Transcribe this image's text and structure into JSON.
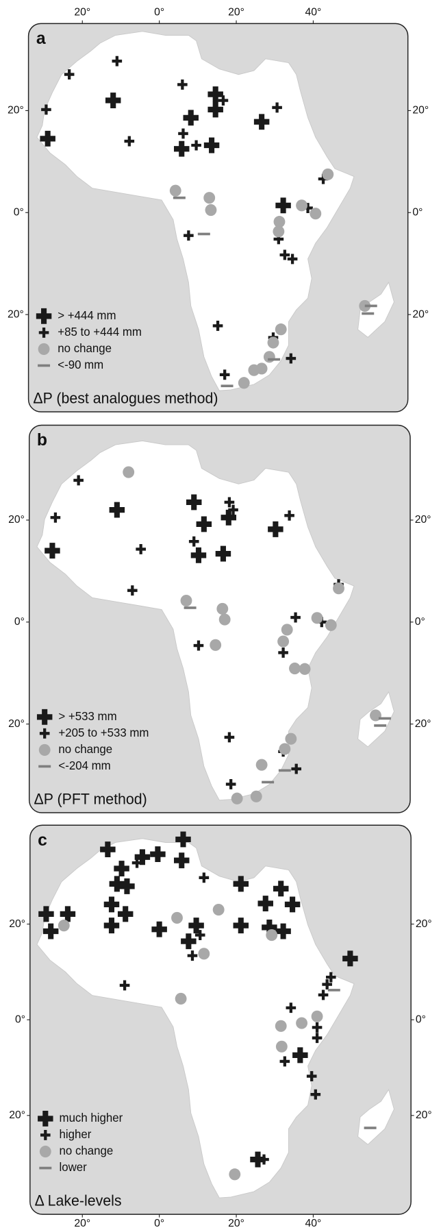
{
  "panels": [
    {
      "label": "a",
      "title": "ΔP (best analogues method)",
      "legend": [
        "> +444 mm",
        "+85 to +444 mm",
        "no change",
        "<-90 mm"
      ],
      "xticks": [
        {
          "value": -20,
          "label": "20°"
        },
        {
          "value": 0,
          "label": "0°"
        },
        {
          "value": 20,
          "label": "20°"
        },
        {
          "value": 40,
          "label": "40°"
        }
      ],
      "yticks": [
        {
          "value": 20,
          "label": "20°"
        },
        {
          "value": 0,
          "label": "0°"
        },
        {
          "value": -20,
          "label": "20°"
        }
      ],
      "sites": [
        [
          -29,
          14.5,
          0
        ],
        [
          -12,
          22,
          0
        ],
        [
          5.8,
          12.5,
          0
        ],
        [
          14.6,
          23.2,
          0
        ],
        [
          14.6,
          20.2,
          0
        ],
        [
          8.2,
          18.6,
          0
        ],
        [
          13.6,
          13.2,
          0
        ],
        [
          26.6,
          17.8,
          0
        ],
        [
          32.2,
          1.4,
          0
        ],
        [
          -23.4,
          27.1,
          1
        ],
        [
          -29.4,
          20.2,
          1
        ],
        [
          -11,
          29.7,
          1
        ],
        [
          -7.8,
          14,
          1
        ],
        [
          6,
          25.1,
          1
        ],
        [
          6.2,
          15.5,
          1
        ],
        [
          9.6,
          13.2,
          1
        ],
        [
          16.6,
          22,
          1
        ],
        [
          30.6,
          20.6,
          1
        ],
        [
          42.6,
          6.6,
          1
        ],
        [
          38.6,
          0.9,
          1
        ],
        [
          7.6,
          -4.5,
          1
        ],
        [
          32.6,
          -8.3,
          1
        ],
        [
          34.6,
          -9.1,
          1
        ],
        [
          15.2,
          -22.2,
          1
        ],
        [
          17,
          -31.8,
          1
        ],
        [
          34.2,
          -28.6,
          1
        ],
        [
          29.6,
          -24.5,
          1
        ],
        [
          31,
          -5.2,
          1
        ],
        [
          4.2,
          4.3,
          2
        ],
        [
          13,
          2.9,
          2
        ],
        [
          13.4,
          0.5,
          2
        ],
        [
          37,
          1.4,
          2
        ],
        [
          40.6,
          -0.2,
          2
        ],
        [
          31.2,
          -1.8,
          2
        ],
        [
          31,
          -3.7,
          2
        ],
        [
          43.8,
          7.5,
          2
        ],
        [
          28.6,
          -28.3,
          2
        ],
        [
          26.6,
          -30.6,
          2
        ],
        [
          31.6,
          -22.9,
          2
        ],
        [
          29.6,
          -25.5,
          2
        ],
        [
          24.6,
          -30.9,
          2
        ],
        [
          22,
          -33.4,
          2
        ],
        [
          53.4,
          -18.3,
          2
        ],
        [
          5.2,
          2.9,
          3
        ],
        [
          11.6,
          -4.2,
          3
        ],
        [
          29.8,
          -28.8,
          3
        ],
        [
          17.6,
          -34,
          3
        ],
        [
          55,
          -18.3,
          3
        ],
        [
          54.2,
          -19.8,
          3
        ]
      ]
    },
    {
      "label": "b",
      "title": "ΔP (PFT method)",
      "legend": [
        "> +533 mm",
        "+205 to +533 mm",
        "no change",
        "<-204 mm"
      ],
      "yticks": [
        {
          "value": 20,
          "label": "20°"
        },
        {
          "value": 0,
          "label": "0°"
        },
        {
          "value": -20,
          "label": "20°"
        }
      ],
      "sites": [
        [
          -27.8,
          14,
          0
        ],
        [
          -11,
          22,
          0
        ],
        [
          9,
          23.5,
          0
        ],
        [
          11.6,
          19.2,
          0
        ],
        [
          18,
          20.5,
          0
        ],
        [
          10.2,
          13.1,
          0
        ],
        [
          16.6,
          13.4,
          0
        ],
        [
          30.2,
          18.2,
          0
        ],
        [
          32.2,
          -6,
          1
        ],
        [
          46.6,
          7.4,
          1
        ],
        [
          -21,
          27.8,
          1
        ],
        [
          -27,
          20.5,
          1
        ],
        [
          -4.8,
          14.3,
          1
        ],
        [
          -7,
          6.2,
          1
        ],
        [
          9,
          15.8,
          1
        ],
        [
          18.2,
          23.5,
          1
        ],
        [
          19.2,
          22,
          1
        ],
        [
          33.8,
          20.9,
          1
        ],
        [
          35.4,
          0.9,
          1
        ],
        [
          42.2,
          0,
          1
        ],
        [
          10.2,
          -4.6,
          1
        ],
        [
          18.2,
          -22.6,
          1
        ],
        [
          18.6,
          -31.8,
          1
        ],
        [
          32.2,
          -25.4,
          1
        ],
        [
          35.6,
          -28.8,
          1
        ],
        [
          -8,
          29.4,
          2
        ],
        [
          7,
          4.2,
          2
        ],
        [
          16.4,
          2.6,
          2
        ],
        [
          17,
          0.5,
          2
        ],
        [
          41,
          0.8,
          2
        ],
        [
          44.6,
          -0.6,
          2
        ],
        [
          33.2,
          -1.5,
          2
        ],
        [
          32.2,
          -3.8,
          2
        ],
        [
          35.2,
          -9.1,
          2
        ],
        [
          37.8,
          -9.2,
          2
        ],
        [
          14.6,
          -4.5,
          2
        ],
        [
          46.6,
          6.6,
          2
        ],
        [
          34.2,
          -22.9,
          2
        ],
        [
          32.6,
          -24.9,
          2
        ],
        [
          26.6,
          -28,
          2
        ],
        [
          20.2,
          -34.6,
          2
        ],
        [
          25.2,
          -34.2,
          2
        ],
        [
          56.2,
          -18.3,
          2
        ],
        [
          8,
          2.8,
          3
        ],
        [
          28.2,
          -31.4,
          3
        ],
        [
          32.6,
          -29.1,
          3
        ],
        [
          58.6,
          -18.9,
          3
        ],
        [
          57.4,
          -20.3,
          3
        ]
      ]
    },
    {
      "label": "c",
      "title": "Δ Lake-levels",
      "legend": [
        "much higher",
        "higher",
        "no change",
        "lower"
      ],
      "xticks": [
        {
          "value": -20,
          "label": "20°"
        },
        {
          "value": 0,
          "label": "0°"
        },
        {
          "value": 20,
          "label": "20°"
        },
        {
          "value": 40,
          "label": "40°"
        }
      ],
      "yticks": [
        {
          "value": 20,
          "label": "20°"
        },
        {
          "value": 0,
          "label": "0°"
        },
        {
          "value": -20,
          "label": "20°"
        }
      ],
      "sites": [
        [
          -13.4,
          35.6,
          0
        ],
        [
          -4.4,
          34,
          0
        ],
        [
          -0.4,
          34.6,
          0
        ],
        [
          6.2,
          37.7,
          0
        ],
        [
          5.8,
          33.3,
          0
        ],
        [
          -9.8,
          31.6,
          0
        ],
        [
          -11,
          28.4,
          0
        ],
        [
          -8.4,
          27.9,
          0
        ],
        [
          21.2,
          28.4,
          0
        ],
        [
          31.6,
          27.4,
          0
        ],
        [
          27.6,
          24.3,
          0
        ],
        [
          34.6,
          24.1,
          0
        ],
        [
          -12.4,
          24.1,
          0
        ],
        [
          -29.4,
          22.1,
          0
        ],
        [
          -23.8,
          22.1,
          0
        ],
        [
          -8.8,
          22.1,
          0
        ],
        [
          -12.4,
          19.7,
          0
        ],
        [
          0,
          18.9,
          0
        ],
        [
          9.6,
          19.7,
          0
        ],
        [
          7.6,
          16.4,
          0
        ],
        [
          21.2,
          19.7,
          0
        ],
        [
          28.6,
          19.3,
          0
        ],
        [
          32.2,
          18.5,
          0
        ],
        [
          49.6,
          12.8,
          0
        ],
        [
          36.6,
          -7.4,
          0
        ],
        [
          25.6,
          -29.2,
          0
        ],
        [
          -28.2,
          18.5,
          0
        ],
        [
          -9,
          7.2,
          1
        ],
        [
          11.6,
          29.7,
          1
        ],
        [
          10.6,
          17.7,
          1
        ],
        [
          8.6,
          13.4,
          1
        ],
        [
          44.6,
          8.9,
          1
        ],
        [
          43.6,
          7.4,
          1
        ],
        [
          42.6,
          5.2,
          1
        ],
        [
          34.2,
          2.5,
          1
        ],
        [
          41,
          -1.6,
          1
        ],
        [
          41,
          -3.8,
          1
        ],
        [
          32.6,
          -8.7,
          1
        ],
        [
          39.6,
          -11.8,
          1
        ],
        [
          40.6,
          -15.6,
          1
        ],
        [
          27.2,
          -29.2,
          1
        ],
        [
          -5.8,
          32.8,
          1
        ],
        [
          -24.8,
          19.7,
          2
        ],
        [
          4.6,
          21.3,
          2
        ],
        [
          15.4,
          23,
          2
        ],
        [
          11.6,
          13.8,
          2
        ],
        [
          5.6,
          4.4,
          2
        ],
        [
          29.2,
          17.7,
          2
        ],
        [
          31.6,
          -1.3,
          2
        ],
        [
          37,
          -0.7,
          2
        ],
        [
          41,
          0.7,
          2
        ],
        [
          31.8,
          -5.6,
          2
        ],
        [
          19.6,
          -32.3,
          2
        ],
        [
          45.4,
          6.2,
          3
        ],
        [
          54.8,
          -22.6,
          3
        ]
      ]
    }
  ]
}
